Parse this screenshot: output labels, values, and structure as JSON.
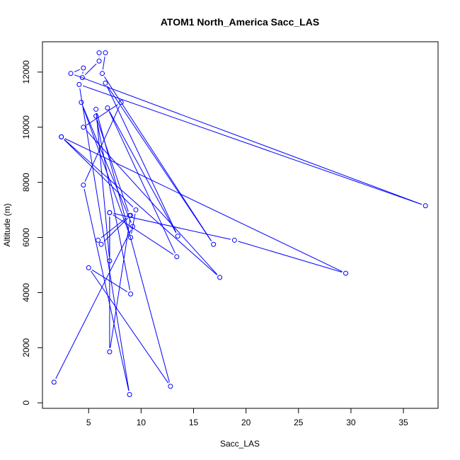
{
  "chart_data": {
    "type": "line",
    "title": "ATOM1 North_America Sacc_LAS",
    "xlabel": "Sacc_LAS",
    "ylabel": "Altitude (m)",
    "xlim": [
      0.6,
      38.3
    ],
    "ylim": [
      -200,
      13100
    ],
    "x_ticks": [
      5,
      10,
      15,
      20,
      25,
      30,
      35
    ],
    "y_ticks": [
      0,
      2000,
      4000,
      6000,
      8000,
      10000,
      12000
    ],
    "series": [
      {
        "color": "#0000ff",
        "marker": "open-circle",
        "points": [
          [
            1.7,
            750
          ],
          [
            9.2,
            6400
          ],
          [
            4.3,
            10900
          ],
          [
            9.0,
            6000
          ],
          [
            9.5,
            7000
          ],
          [
            2.4,
            9650
          ],
          [
            17.5,
            4550
          ],
          [
            4.5,
            10000
          ],
          [
            8.1,
            10900
          ],
          [
            4.5,
            7900
          ],
          [
            8.9,
            300
          ],
          [
            4.1,
            11550
          ],
          [
            37.1,
            7150
          ],
          [
            3.3,
            11950
          ],
          [
            4.5,
            12150
          ],
          [
            4.4,
            11800
          ],
          [
            6.0,
            12400
          ],
          [
            6.0,
            12700
          ],
          [
            6.6,
            12700
          ],
          [
            6.3,
            11950
          ],
          [
            16.9,
            5750
          ],
          [
            6.6,
            11600
          ],
          [
            13.5,
            6050
          ],
          [
            6.8,
            10700
          ],
          [
            13.4,
            5300
          ],
          [
            7.0,
            6900
          ],
          [
            7.0,
            5150
          ],
          [
            5.7,
            10650
          ],
          [
            12.8,
            600
          ],
          [
            5.0,
            4900
          ],
          [
            9.0,
            3950
          ],
          [
            5.7,
            10400
          ],
          [
            8.9,
            6800
          ],
          [
            5.9,
            5900
          ],
          [
            6.2,
            5750
          ],
          [
            9.0,
            6800
          ],
          [
            7.0,
            1850
          ],
          [
            7.0,
            6900
          ],
          [
            18.9,
            5900
          ],
          [
            29.5,
            4700
          ],
          [
            2.4,
            9650
          ]
        ]
      }
    ],
    "grid": false,
    "legend": "none"
  }
}
